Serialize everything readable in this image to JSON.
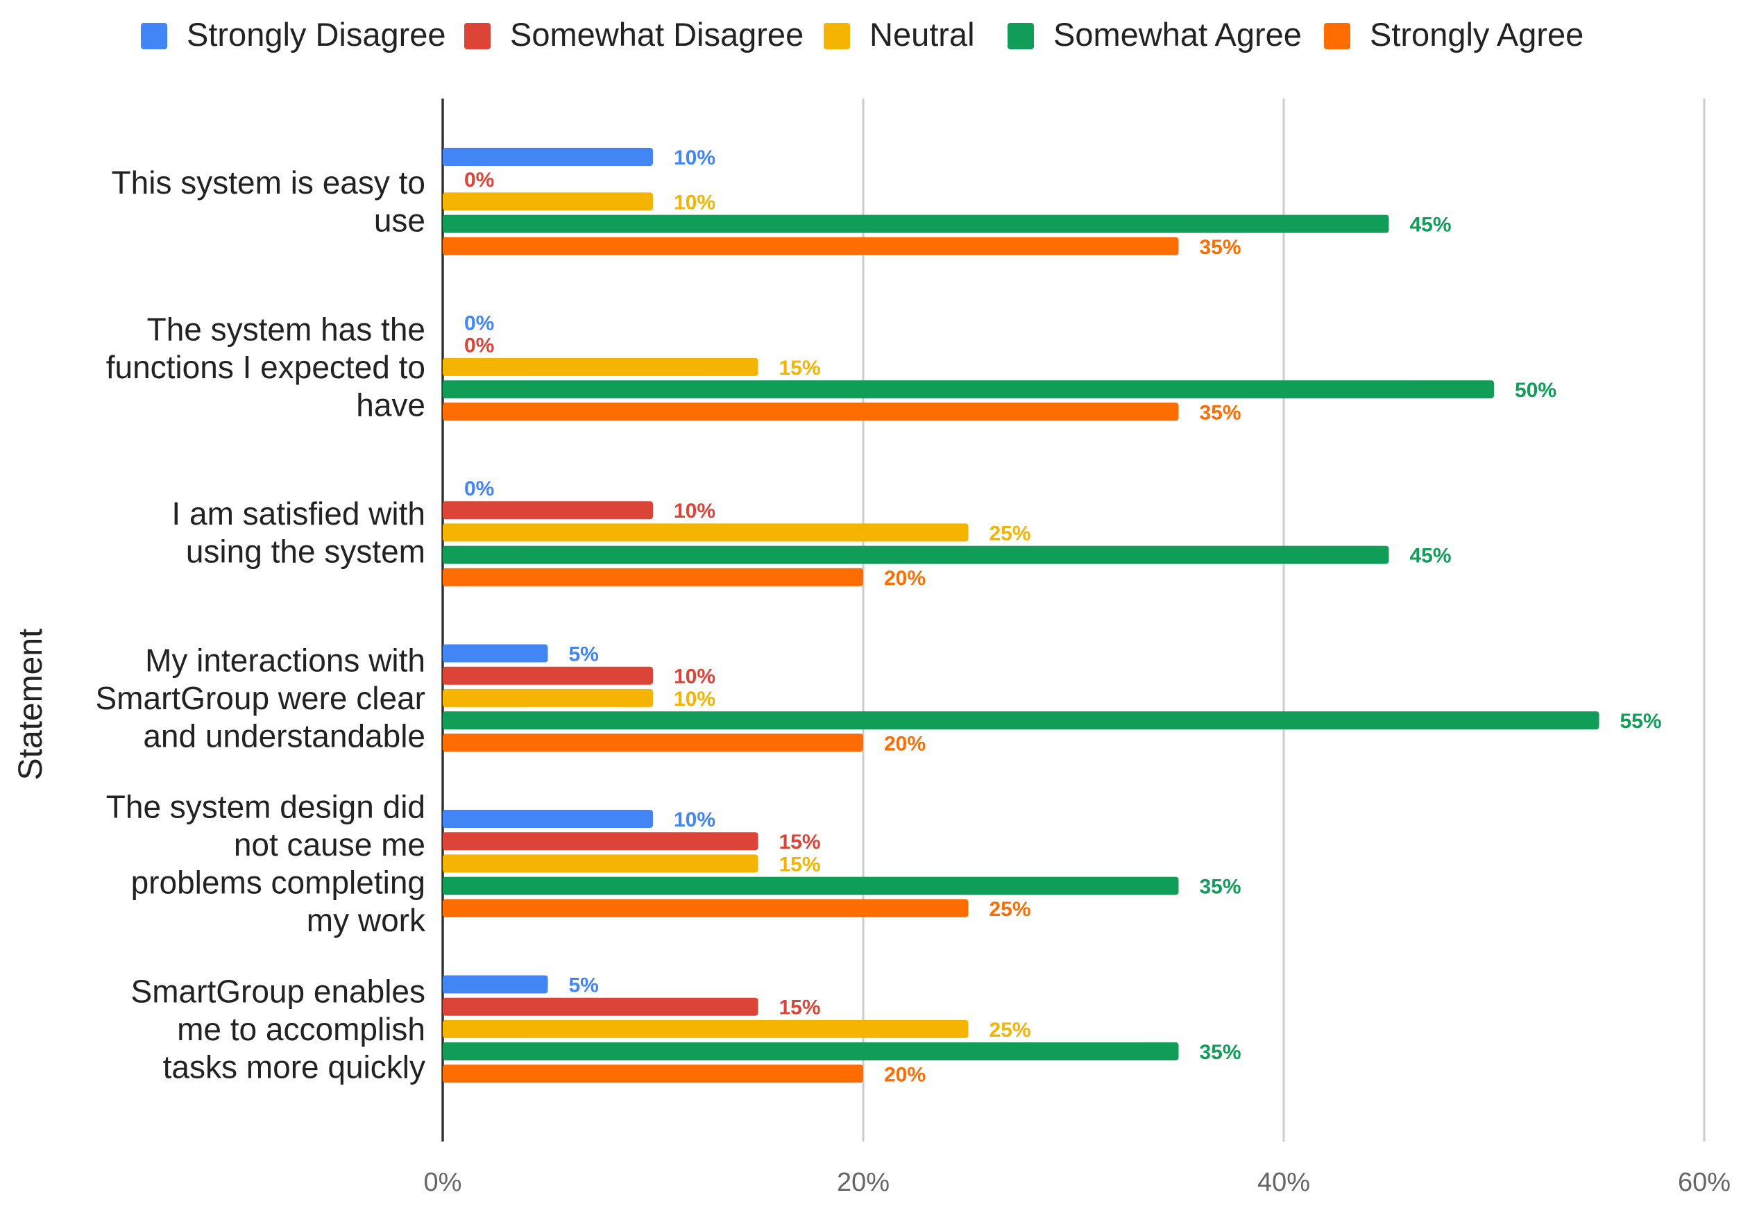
{
  "chart_data": {
    "type": "bar",
    "orientation": "horizontal",
    "title": "",
    "xlabel": "",
    "ylabel": "Statement",
    "xlim": [
      0,
      60
    ],
    "x_ticks": [
      "0%",
      "20%",
      "40%",
      "60%"
    ],
    "grid": true,
    "legend_position": "top",
    "categories": [
      [
        "This system is easy to",
        "use"
      ],
      [
        "The system has the",
        "functions I expected to",
        "have"
      ],
      [
        "I am satisfied with",
        "using the system"
      ],
      [
        "My interactions with",
        "SmartGroup were clear",
        "and understandable"
      ],
      [
        "The system design did",
        "not cause me",
        "problems completing",
        "my work"
      ],
      [
        "SmartGroup enables",
        "me to accomplish",
        "tasks more quickly"
      ]
    ],
    "series": [
      {
        "name": "Strongly Disagree",
        "color": "#4285F4",
        "values": [
          10,
          0,
          0,
          5,
          10,
          5
        ],
        "labels": [
          "10%",
          "0%",
          "0%",
          "5%",
          "10%",
          "5%"
        ]
      },
      {
        "name": "Somewhat Disagree",
        "color": "#DB4437",
        "values": [
          0,
          0,
          10,
          10,
          15,
          15
        ],
        "labels": [
          "0%",
          "0%",
          "10%",
          "10%",
          "15%",
          "15%"
        ]
      },
      {
        "name": "Neutral",
        "color": "#F4B400",
        "values": [
          10,
          15,
          25,
          10,
          15,
          25
        ],
        "labels": [
          "10%",
          "15%",
          "25%",
          "10%",
          "15%",
          "25%"
        ]
      },
      {
        "name": "Somewhat Agree",
        "color": "#0F9D58",
        "values": [
          45,
          50,
          45,
          55,
          35,
          35
        ],
        "labels": [
          "45%",
          "50%",
          "45%",
          "55%",
          "35%",
          "35%"
        ]
      },
      {
        "name": "Strongly Agree",
        "color": "#FF6D01",
        "values": [
          35,
          35,
          20,
          20,
          25,
          20
        ],
        "labels": [
          "35%",
          "35%",
          "20%",
          "20%",
          "25%",
          "20%"
        ]
      }
    ]
  }
}
